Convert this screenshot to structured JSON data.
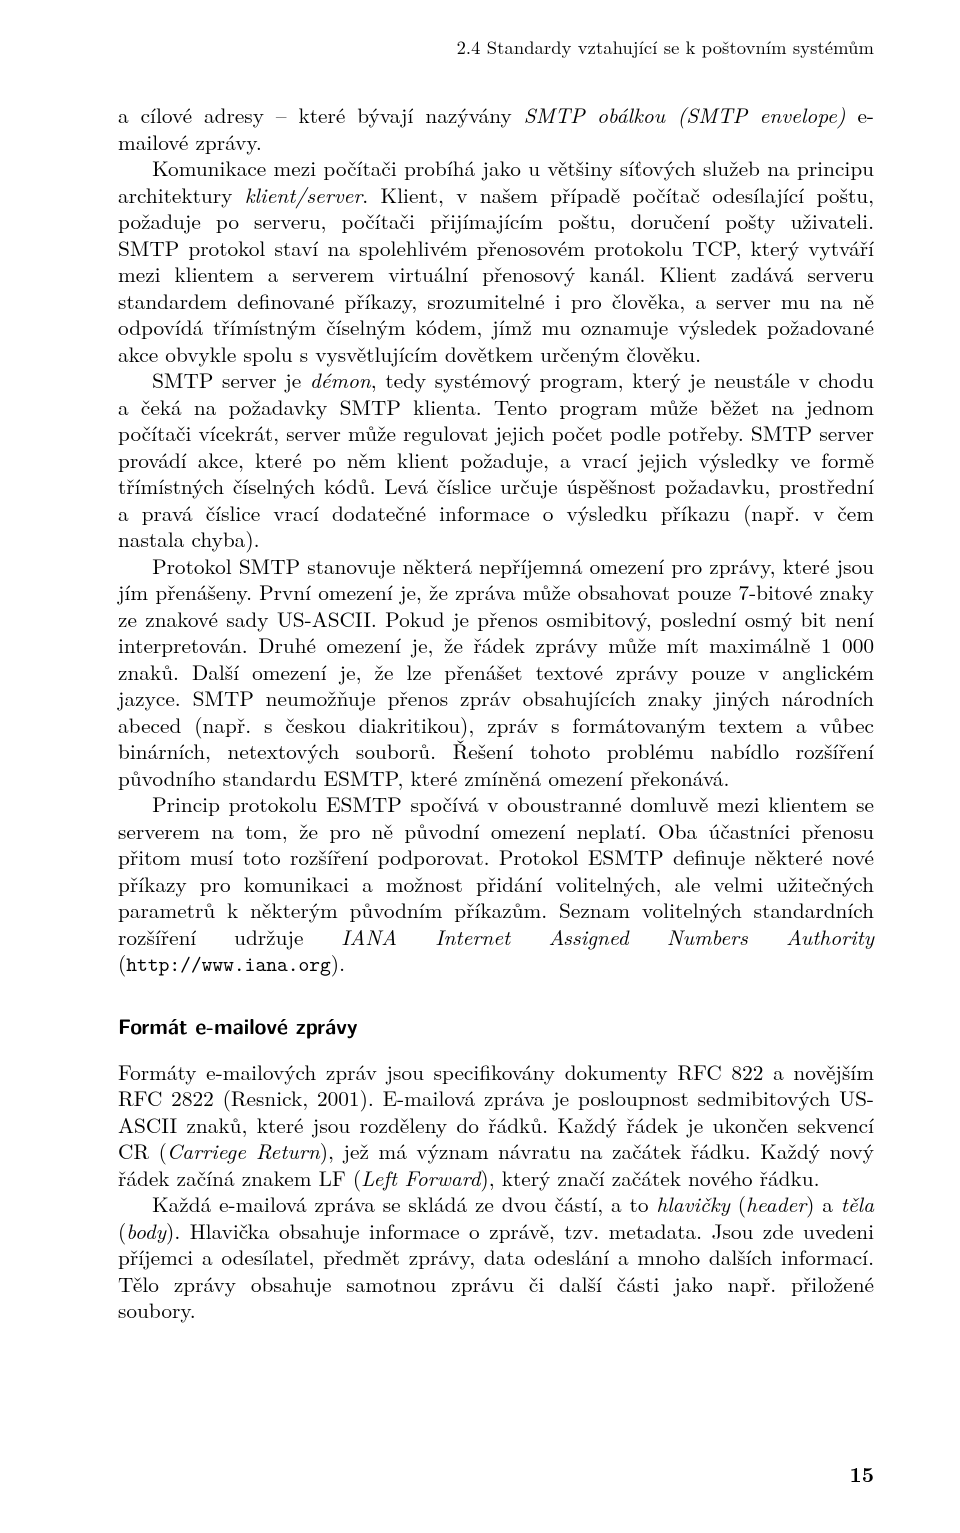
{
  "header": "2.4  Standardy vztahující se k poštovním systémům",
  "p1": "a cílové adresy – které bývají nazývány <i>SMTP obálkou (SMTP envelope)</i> e-mailové zprávy.",
  "p2": "Komunikace mezi počítači probíhá jako u většiny síťových služeb na principu architektury <i>klient/server</i>. Klient, v našem případě počítač odesílající poštu, požaduje po serveru, počítači přijímajícím poštu, doručení pošty uživateli. SMTP protokol staví na spolehlivém přenosovém protokolu TCP, který vytváří mezi klientem a serverem virtuální přenosový kanál. Klient zadává serveru standardem definované příkazy, srozumitelné i pro člověka, a server mu na ně odpovídá třímístným číselným kódem, jímž mu oznamuje výsledek požadované akce obvykle spolu s vysvětlujícím dovětkem určeným člověku.",
  "p3": "SMTP server je <i>démon</i>, tedy systémový program, který je neustále v chodu a čeká na požadavky SMTP klienta. Tento program může běžet na jednom počítači vícekrát, server může regulovat jejich počet podle potřeby. SMTP server provádí akce, které po něm klient požaduje, a vrací jejich výsledky ve formě třímístných číselných kódů. Levá číslice určuje úspěšnost požadavku, prostřední a pravá číslice vrací dodatečné informace o výsledku příkazu (např. v čem nastala chyba).",
  "p4": "Protokol SMTP stanovuje některá nepříjemná omezení pro zprávy, které jsou jím přenášeny. První omezení je, že zpráva může obsahovat pouze 7-bitové znaky ze znakové sady US-ASCII. Pokud je přenos osmibitový, poslední osmý bit není interpretován. Druhé omezení je, že řádek zprávy může mít maximálně 1 000 znaků. Další omezení je, že lze přenášet textové zprávy pouze v anglickém jazyce. SMTP neumožňuje přenos zpráv obsahujících znaky jiných národních abeced (např. s českou diakritikou), zpráv s formátovaným textem a vůbec binárních, netextových souborů. Řešení tohoto problému nabídlo rozšíření původního standardu ESMTP, které zmíněná omezení překonává.",
  "p5": "Princip protokolu ESMTP spočívá v oboustranné domluvě mezi klientem se serverem na tom, že pro ně původní omezení neplatí. Oba účastníci přenosu přitom musí toto rozšíření podporovat. Protokol ESMTP definuje některé nové příkazy pro komunikaci a možnost přidání volitelných, ale velmi užitečných parametrů k některým původním příkazům. Seznam volitelných standardních rozšíření udržuje <i>IANA Internet Assigned Numbers Authority</i> (<tt>http://www.iana.org</tt>).",
  "sub": "Formát e-mailové zprávy",
  "p6": "Formáty e-mailových zpráv jsou specifikovány dokumenty RFC 822 a novějším RFC 2822 (Resnick, 2001). E-mailová zpráva je posloupnost sedmibitových US-ASCII znaků, které jsou rozděleny do řádků. Každý řádek je ukončen sekvencí CR (<i>Carriege Return</i>), jež má význam návratu na začátek řádku. Každý nový řádek začíná znakem LF (<i>Left Forward</i>), který značí začátek nového řádku.",
  "p7": "Každá e-mailová zpráva se skládá ze dvou částí, a to <i>hlavičky</i> (<i>header</i>) a <i>těla</i> (<i>body</i>). Hlavička obsahuje informace o zprávě, tzv. metadata. Jsou zde uvedeni příjemci a odesílatel, předmět zprávy, data odeslání a mnoho dalších informací. Tělo zprávy obsahuje samotnou zprávu či další části jako např. přiložené soubory.",
  "pageNum": "15"
}
